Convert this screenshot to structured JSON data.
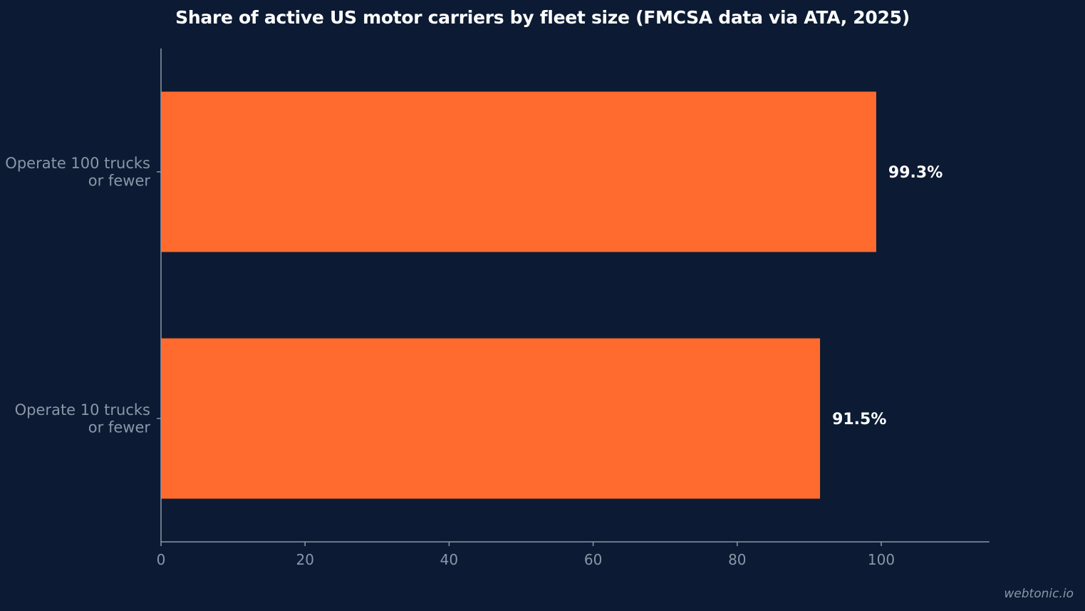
{
  "chart_data": {
    "type": "bar",
    "orientation": "horizontal",
    "title": "Share of active US motor carriers by fleet size (FMCSA data via ATA, 2025)",
    "categories": [
      [
        "Operate 100 trucks",
        "or fewer"
      ],
      [
        "Operate 10 trucks",
        "or fewer"
      ]
    ],
    "values": [
      99.3,
      91.5
    ],
    "data_labels": [
      "99.3%",
      "91.5%"
    ],
    "xlim": [
      0,
      115
    ],
    "xticks": [
      0,
      20,
      40,
      60,
      80,
      100
    ],
    "xlabel": "",
    "ylabel": "",
    "grid": false,
    "bar_color": "#ff6b2e",
    "background_color": "#0c1b33",
    "axis_color": "#8b96a8"
  },
  "watermark": "webtonic.io"
}
